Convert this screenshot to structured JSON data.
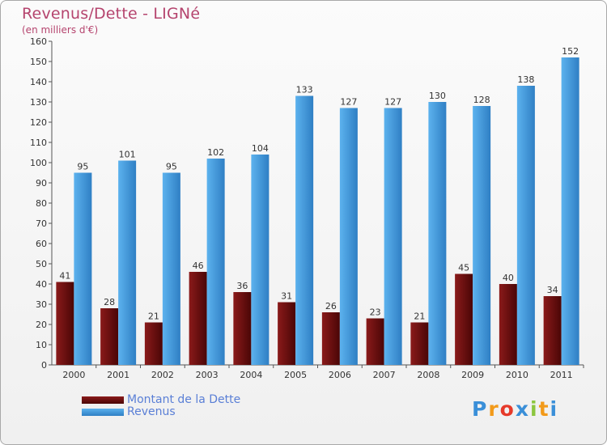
{
  "header": {
    "title": "Revenus/Dette - LIGNé",
    "subtitle": "(en milliers d'€)"
  },
  "chart_data": {
    "type": "bar",
    "categories": [
      "2000",
      "2001",
      "2002",
      "2003",
      "2004",
      "2005",
      "2006",
      "2007",
      "2008",
      "2009",
      "2010",
      "2011"
    ],
    "series": [
      {
        "name": "Montant de la Dette",
        "values": [
          41,
          28,
          21,
          46,
          36,
          31,
          26,
          23,
          21,
          45,
          40,
          34
        ],
        "color": "#7a1010"
      },
      {
        "name": "Revenus",
        "values": [
          95,
          101,
          95,
          102,
          104,
          133,
          127,
          127,
          130,
          128,
          138,
          152
        ],
        "color": "#4a9ee0"
      }
    ],
    "yticks": [
      0,
      10,
      20,
      30,
      40,
      50,
      60,
      70,
      80,
      90,
      100,
      110,
      120,
      130,
      140,
      150,
      160
    ],
    "ylim": [
      0,
      160
    ],
    "grid": false,
    "legend_position": "bottom-left"
  },
  "legend": {
    "items": [
      {
        "label": "Montant de la Dette",
        "color": "#7a1010"
      },
      {
        "label": "Revenus",
        "color": "#4a9ee0"
      }
    ]
  },
  "logo": {
    "text": "Proxiti",
    "letters": [
      {
        "ch": "P",
        "color": "#3a8fd8"
      },
      {
        "ch": "r",
        "color": "#f29a1a"
      },
      {
        "ch": "o",
        "color": "#e63a2a"
      },
      {
        "ch": "x",
        "color": "#3a8fd8"
      },
      {
        "ch": "i",
        "color": "#8cc63f"
      },
      {
        "ch": "t",
        "color": "#f29a1a"
      },
      {
        "ch": "i",
        "color": "#3a8fd8"
      }
    ]
  }
}
